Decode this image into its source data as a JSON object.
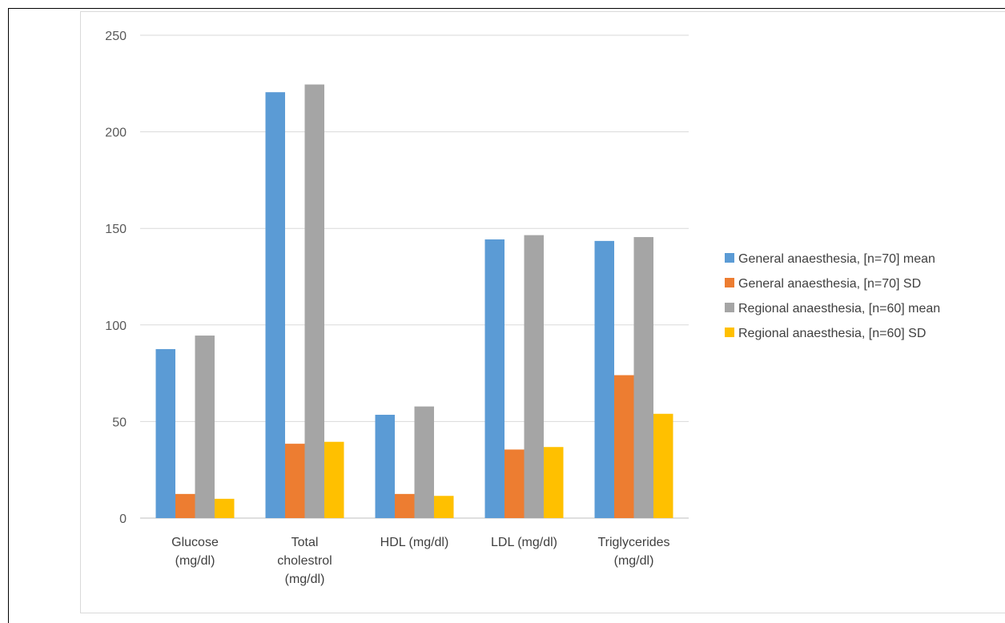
{
  "chart_data": {
    "type": "bar",
    "title": "",
    "xlabel": "",
    "ylabel": "",
    "ylim": [
      0,
      250
    ],
    "yticks": [
      0,
      50,
      100,
      150,
      200,
      250
    ],
    "grid": true,
    "legend_position": "right",
    "categories": [
      [
        "Glucose",
        "(mg/dl)"
      ],
      [
        "Total",
        "cholestrol",
        "(mg/dl)"
      ],
      [
        "HDL (mg/dl)"
      ],
      [
        "LDL (mg/dl)"
      ],
      [
        "Triglycerides",
        "(mg/dl)"
      ]
    ],
    "series": [
      {
        "name": "General anaesthesia, [n=70] mean",
        "color": "#5b9bd5",
        "values": [
          87.5,
          220.5,
          53.5,
          144.3,
          143.5
        ]
      },
      {
        "name": "General anaesthesia, [n=70] SD",
        "color": "#ed7d31",
        "values": [
          12.5,
          38.5,
          12.5,
          35.5,
          74.0
        ]
      },
      {
        "name": "Regional anaesthesia, [n=60] mean",
        "color": "#a5a5a5",
        "values": [
          94.5,
          224.5,
          57.8,
          146.5,
          145.5
        ]
      },
      {
        "name": "Regional anaesthesia, [n=60] SD",
        "color": "#ffc000",
        "values": [
          10.0,
          39.5,
          11.5,
          36.8,
          54.0
        ]
      }
    ]
  }
}
